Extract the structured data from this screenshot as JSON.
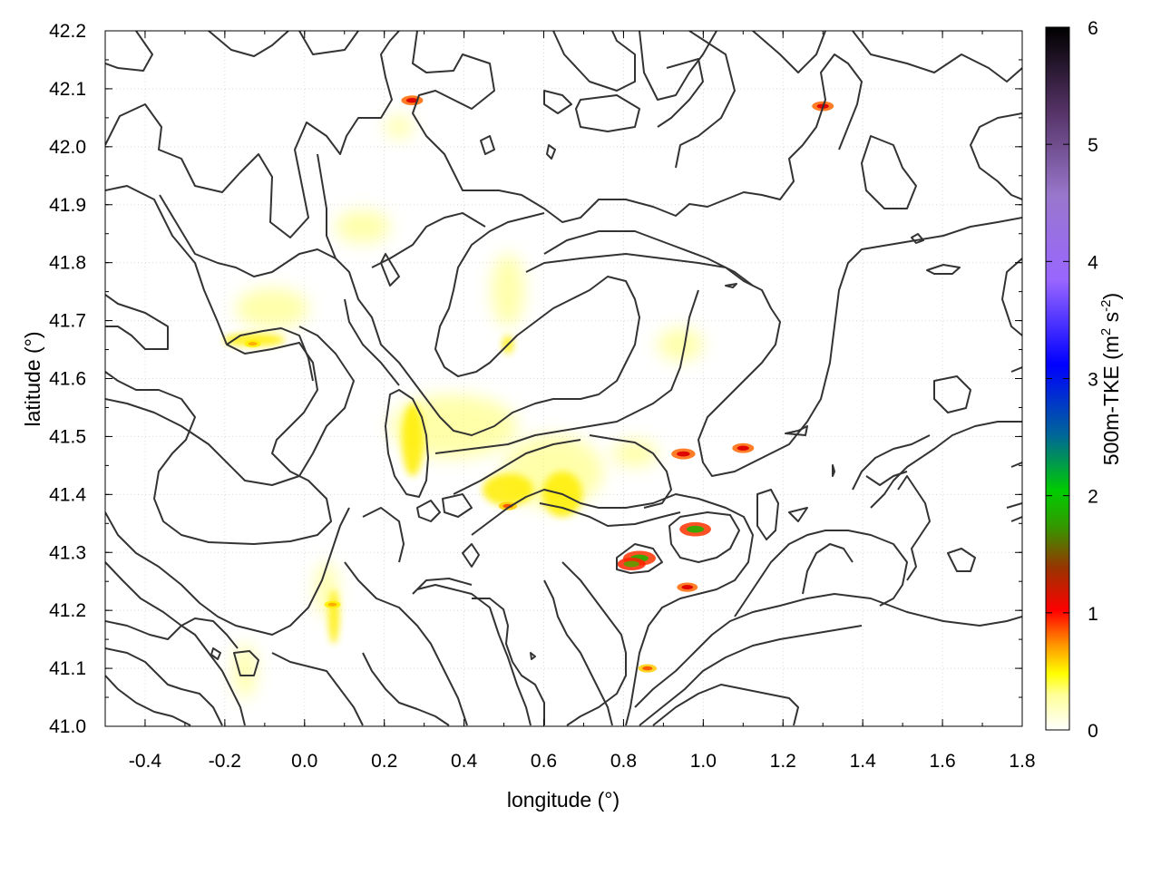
{
  "chart_data": {
    "type": "heatmap",
    "title": "",
    "xlabel": "longitude (°)",
    "ylabel": "latitude (°)",
    "xlim": [
      -0.5,
      1.8
    ],
    "ylim": [
      41.0,
      42.2
    ],
    "xticks": [
      -0.4,
      -0.2,
      0.0,
      0.2,
      0.4,
      0.6,
      0.8,
      1.0,
      1.2,
      1.4,
      1.6,
      1.8
    ],
    "xtick_labels": [
      "-0.4",
      "-0.2",
      "0.0",
      "0.2",
      "0.4",
      "0.6",
      "0.8",
      "1.0",
      "1.2",
      "1.4",
      "1.6",
      "1.8"
    ],
    "yticks": [
      41.0,
      41.1,
      41.2,
      41.3,
      41.4,
      41.5,
      41.6,
      41.7,
      41.8,
      41.9,
      42.0,
      42.1,
      42.2
    ],
    "ytick_labels": [
      "41.0",
      "41.1",
      "41.2",
      "41.3",
      "41.4",
      "41.5",
      "41.6",
      "41.7",
      "41.8",
      "41.9",
      "42.0",
      "42.1",
      "42.2"
    ],
    "grid": true,
    "colorbar": {
      "label_main": "500m-TKE (m",
      "label_sup1": "2",
      "label_mid": " s",
      "label_sup2": "-2",
      "label_end": ")",
      "range": [
        0,
        6
      ],
      "ticks": [
        0,
        1,
        2,
        3,
        4,
        5,
        6
      ],
      "tick_labels": [
        "0",
        "1",
        "2",
        "3",
        "4",
        "5",
        "6"
      ],
      "colors": [
        "#ffffff",
        "#ffff00",
        "#ff9900",
        "#ff0000",
        "#990000",
        "#00cc00",
        "#008800",
        "#0000ff",
        "#9999ff",
        "#6644aa",
        "#000000"
      ]
    },
    "tke_hotspots": [
      {
        "lon": 0.84,
        "lat": 41.29,
        "value": 2.0
      },
      {
        "lon": 0.98,
        "lat": 41.34,
        "value": 1.9
      },
      {
        "lon": 0.82,
        "lat": 41.28,
        "value": 1.6
      },
      {
        "lon": 0.95,
        "lat": 41.47,
        "value": 1.2
      },
      {
        "lon": 1.1,
        "lat": 41.48,
        "value": 1.0
      },
      {
        "lon": 0.27,
        "lat": 42.08,
        "value": 1.0
      },
      {
        "lon": 1.3,
        "lat": 42.07,
        "value": 1.0
      },
      {
        "lon": 0.96,
        "lat": 41.24,
        "value": 0.9
      },
      {
        "lon": 0.51,
        "lat": 41.38,
        "value": 0.7
      },
      {
        "lon": 0.86,
        "lat": 41.1,
        "value": 0.7
      },
      {
        "lon": -0.13,
        "lat": 41.66,
        "value": 0.5
      },
      {
        "lon": 0.07,
        "lat": 41.21,
        "value": 0.5
      }
    ],
    "contour_color": "#333333"
  }
}
